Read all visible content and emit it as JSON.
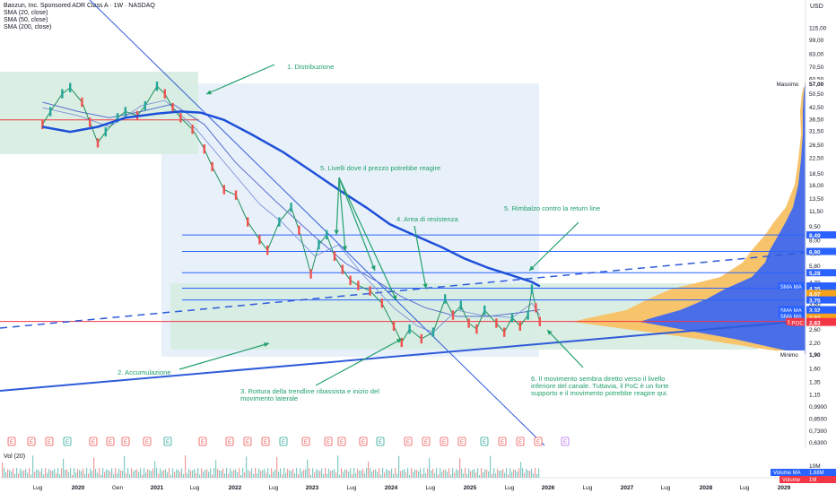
{
  "header": {
    "title": "Baozun, Inc. Sponsored ADR Class A · 1W · NASDAQ",
    "indicators": [
      "SMA (20, close)",
      "SMA (50, close)",
      "SMA (200, close)"
    ],
    "currency": "USD",
    "volume_label": "Vol (20)"
  },
  "chart_data": {
    "type": "line",
    "scale": "log",
    "x_ticks": [
      "Lug",
      "2020",
      "Gen",
      "2021",
      "Lug",
      "2022",
      "Lug",
      "2023",
      "Lug",
      "2024",
      "Lug",
      "2025",
      "Lug",
      "2026",
      "Lug",
      "2027",
      "Lug",
      "2028",
      "Lug",
      "2029"
    ],
    "y_ticks": [
      "115,00",
      "99,00",
      "83,00",
      "70,50",
      "60,50",
      "50,50",
      "42,50",
      "36,50",
      "31,50",
      "26,50",
      "22,50",
      "18,50",
      "16,00",
      "13,50",
      "11,50",
      "9,50",
      "8,00",
      "6,80",
      "5,80",
      "4,70",
      "3,60",
      "2,60",
      "2,20",
      "1,90",
      "1,60",
      "1,35",
      "1,15",
      "0,9900",
      "0,8500",
      "0,7300",
      "0,6300"
    ],
    "price_labels": [
      {
        "text": "57,00",
        "value": 57,
        "color": "#ffffff",
        "text_color": "#131722"
      },
      {
        "text": "8,49",
        "value": 8.49,
        "color": "#2962ff",
        "text_color": "#ffffff"
      },
      {
        "text": "6,90",
        "value": 6.9,
        "color": "#2962ff",
        "text_color": "#ffffff"
      },
      {
        "text": "5,28",
        "value": 5.28,
        "color": "#2962ff",
        "text_color": "#ffffff"
      },
      {
        "text": "4,47",
        "value": 4.47,
        "color": "#2962ff",
        "text_color": "#ffffff"
      },
      {
        "text": "4,35",
        "value": 4.35,
        "color": "#2962ff",
        "text_color": "#ffffff"
      },
      {
        "text": "4,07",
        "value": 4.07,
        "color": "#f7a21b",
        "text_color": "#ffffff"
      },
      {
        "text": "3,75",
        "value": 3.75,
        "color": "#2962ff",
        "text_color": "#ffffff"
      },
      {
        "text": "3,32",
        "value": 3.32,
        "color": "#2962ff",
        "text_color": "#ffffff"
      },
      {
        "text": "3,09",
        "value": 3.09,
        "color": "#2962ff",
        "text_color": "#ffffff"
      },
      {
        "text": "3,02",
        "value": 3.02,
        "color": "#f7a21b",
        "text_color": "#ffffff"
      },
      {
        "text": "2,86",
        "value": 2.86,
        "color": "#f23645",
        "text_color": "#ffffff"
      },
      {
        "text": "2,83",
        "value": 2.83,
        "color": "#f23645",
        "text_color": "#ffffff"
      },
      {
        "text": "1,90",
        "value": 1.9,
        "color": "#ffffff",
        "text_color": "#131722"
      }
    ],
    "side_tags": [
      {
        "text": "Massimo",
        "value": 57
      },
      {
        "text": "SMA MA",
        "value": 4.47
      },
      {
        "text": "SMA MA",
        "value": 3.32
      },
      {
        "text": "SMA MA",
        "value": 3.09
      },
      {
        "text": "BZUN",
        "value": 2.86
      },
      {
        "text": "POC",
        "value": 2.83
      },
      {
        "text": "Minimo",
        "value": 1.9
      }
    ],
    "horizontal_levels": [
      8.49,
      6.9,
      5.28,
      4.35,
      3.75,
      2.86
    ],
    "sma200": [
      [
        2019.55,
        33
      ],
      [
        2019.9,
        31
      ],
      [
        2020.25,
        33
      ],
      [
        2020.6,
        37
      ],
      [
        2021.0,
        39
      ],
      [
        2021.3,
        40
      ],
      [
        2021.55,
        39.5
      ],
      [
        2021.85,
        36
      ],
      [
        2022.2,
        30
      ],
      [
        2022.6,
        24
      ],
      [
        2022.95,
        19
      ],
      [
        2023.3,
        15
      ],
      [
        2023.65,
        12
      ],
      [
        2023.95,
        9.7
      ],
      [
        2024.25,
        8.5
      ],
      [
        2024.6,
        7.3
      ],
      [
        2024.9,
        6.3
      ],
      [
        2025.2,
        5.6
      ],
      [
        2025.5,
        5.1
      ],
      [
        2025.75,
        4.7
      ],
      [
        2025.85,
        4.45
      ]
    ],
    "sma50": [
      [
        2019.55,
        45
      ],
      [
        2020.0,
        40
      ],
      [
        2020.4,
        37
      ],
      [
        2020.8,
        40
      ],
      [
        2021.2,
        44
      ],
      [
        2021.6,
        34
      ],
      [
        2022.0,
        21
      ],
      [
        2022.5,
        13
      ],
      [
        2023.0,
        8.3
      ],
      [
        2023.4,
        5.9
      ],
      [
        2023.8,
        4.7
      ],
      [
        2024.1,
        3.9
      ],
      [
        2024.4,
        3.4
      ],
      [
        2024.8,
        3.05
      ],
      [
        2025.2,
        3.05
      ],
      [
        2025.6,
        3.2
      ],
      [
        2025.85,
        3.32
      ]
    ],
    "sma20": [
      [
        2019.55,
        42
      ],
      [
        2020.0,
        38
      ],
      [
        2020.4,
        33
      ],
      [
        2020.8,
        43
      ],
      [
        2021.1,
        46
      ],
      [
        2021.5,
        32
      ],
      [
        2021.9,
        20
      ],
      [
        2022.3,
        12.5
      ],
      [
        2022.6,
        9.8
      ],
      [
        2023.0,
        6.5
      ],
      [
        2023.3,
        7.5
      ],
      [
        2023.6,
        5.2
      ],
      [
        2024.0,
        3.4
      ],
      [
        2024.3,
        2.7
      ],
      [
        2024.5,
        2.5
      ],
      [
        2024.8,
        3.3
      ],
      [
        2025.1,
        3.1
      ],
      [
        2025.5,
        3.0
      ],
      [
        2025.75,
        3.6
      ],
      [
        2025.85,
        3.09
      ]
    ],
    "price": [
      [
        2019.55,
        34
      ],
      [
        2019.65,
        40
      ],
      [
        2019.8,
        50
      ],
      [
        2019.9,
        54
      ],
      [
        2020.05,
        45
      ],
      [
        2020.15,
        35
      ],
      [
        2020.25,
        27
      ],
      [
        2020.35,
        31
      ],
      [
        2020.5,
        37
      ],
      [
        2020.6,
        40
      ],
      [
        2020.75,
        38
      ],
      [
        2020.85,
        43
      ],
      [
        2021.0,
        55
      ],
      [
        2021.1,
        50
      ],
      [
        2021.2,
        42
      ],
      [
        2021.3,
        37
      ],
      [
        2021.45,
        32
      ],
      [
        2021.6,
        25
      ],
      [
        2021.7,
        20
      ],
      [
        2021.85,
        15
      ],
      [
        2022.0,
        14
      ],
      [
        2022.15,
        10
      ],
      [
        2022.3,
        8
      ],
      [
        2022.4,
        7
      ],
      [
        2022.55,
        10
      ],
      [
        2022.7,
        12
      ],
      [
        2022.8,
        9
      ],
      [
        2022.95,
        5.2
      ],
      [
        2023.05,
        7.5
      ],
      [
        2023.15,
        8.5
      ],
      [
        2023.25,
        6.5
      ],
      [
        2023.35,
        5.5
      ],
      [
        2023.45,
        4.8
      ],
      [
        2023.55,
        4.5
      ],
      [
        2023.7,
        4.2
      ],
      [
        2023.85,
        3.6
      ],
      [
        2024.0,
        2.7
      ],
      [
        2024.1,
        2.2
      ],
      [
        2024.2,
        2.6
      ],
      [
        2024.35,
        2.3
      ],
      [
        2024.5,
        2.5
      ],
      [
        2024.65,
        3.8
      ],
      [
        2024.75,
        3.1
      ],
      [
        2024.85,
        3.5
      ],
      [
        2024.95,
        2.8
      ],
      [
        2025.05,
        2.6
      ],
      [
        2025.15,
        3.3
      ],
      [
        2025.3,
        2.8
      ],
      [
        2025.4,
        2.5
      ],
      [
        2025.5,
        3.0
      ],
      [
        2025.6,
        2.7
      ],
      [
        2025.7,
        3.1
      ],
      [
        2025.75,
        4.3
      ],
      [
        2025.8,
        3.4
      ],
      [
        2025.85,
        2.86
      ]
    ],
    "annotations": [
      {
        "text": "1. Distribuzione",
        "anchor": "top-left"
      },
      {
        "text": "2. Accumulazione",
        "anchor": "bottom-left"
      },
      {
        "text": "3. Rottura della trendline ribassista e inizio del",
        "anchor": "bottom-center"
      },
      {
        "text": "movimento laterale",
        "anchor": "bottom-center"
      },
      {
        "text": "4. Area di resistenza",
        "anchor": "center"
      },
      {
        "text": "5. Livelli dove il prezzo potrebbe reagire",
        "anchor": "upper-center"
      },
      {
        "text": "5. Rimbalzo contro la return line",
        "anchor": "upper-right"
      },
      {
        "text": "6. Il movimento sembra diretto verso il livello",
        "anchor": "bottom-right"
      },
      {
        "text": "inferiore del canale. Tuttavia, il PoC è un forte",
        "anchor": "bottom-right"
      },
      {
        "text": "supporto e il movimento potrebbe reagire qui.",
        "anchor": "bottom-right"
      }
    ],
    "event_markers": [
      "E",
      "E",
      "E",
      "E",
      "E",
      "E",
      "E",
      "E",
      "E",
      "E",
      "E",
      "E",
      "E",
      "E",
      "E",
      "E",
      "E",
      "E",
      "E",
      "E",
      "E",
      "E",
      "E",
      "E",
      "E",
      "E",
      "E"
    ],
    "volume": {
      "label": "Vol (20)",
      "ticks": [
        "10M",
        "5M",
        "0"
      ],
      "volume_ma": "1,68M",
      "volume": "1M",
      "volume_ma_label": "Volume MA",
      "volume_label": "Volume"
    },
    "colors": {
      "sma200": "#1e4fd8",
      "sma": "#3556c9",
      "level": "#2962ff",
      "poc": "#f23645",
      "zone": "#d6ece0",
      "range": "#e8f1fa",
      "text_annot": "#22a06b",
      "trend": "#2f5bd9"
    }
  }
}
